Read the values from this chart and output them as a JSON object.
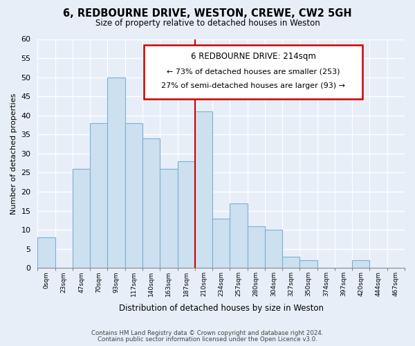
{
  "title": "6, REDBOURNE DRIVE, WESTON, CREWE, CW2 5GH",
  "subtitle": "Size of property relative to detached houses in Weston",
  "xlabel": "Distribution of detached houses by size in Weston",
  "ylabel": "Number of detached properties",
  "bin_labels": [
    "0sqm",
    "23sqm",
    "47sqm",
    "70sqm",
    "93sqm",
    "117sqm",
    "140sqm",
    "163sqm",
    "187sqm",
    "210sqm",
    "234sqm",
    "257sqm",
    "280sqm",
    "304sqm",
    "327sqm",
    "350sqm",
    "374sqm",
    "397sqm",
    "420sqm",
    "444sqm",
    "467sqm"
  ],
  "bar_values": [
    8,
    0,
    26,
    38,
    50,
    38,
    34,
    26,
    28,
    41,
    13,
    17,
    11,
    10,
    3,
    2,
    0,
    0,
    2,
    0,
    0
  ],
  "bar_color": "#cce0f0",
  "bar_edge_color": "#7ab0d4",
  "marker_label": "6 REDBOURNE DRIVE: 214sqm",
  "annotation_line1": "← 73% of detached houses are smaller (253)",
  "annotation_line2": "27% of semi-detached houses are larger (93) →",
  "annotation_box_color": "#ffffff",
  "annotation_box_edge_color": "#cc0000",
  "vline_color": "#cc0000",
  "vline_x": 9,
  "ylim": [
    0,
    60
  ],
  "yticks": [
    0,
    5,
    10,
    15,
    20,
    25,
    30,
    35,
    40,
    45,
    50,
    55,
    60
  ],
  "footer1": "Contains HM Land Registry data © Crown copyright and database right 2024.",
  "footer2": "Contains public sector information licensed under the Open Licence v3.0.",
  "background_color": "#e8eef8",
  "grid_color": "#ffffff"
}
